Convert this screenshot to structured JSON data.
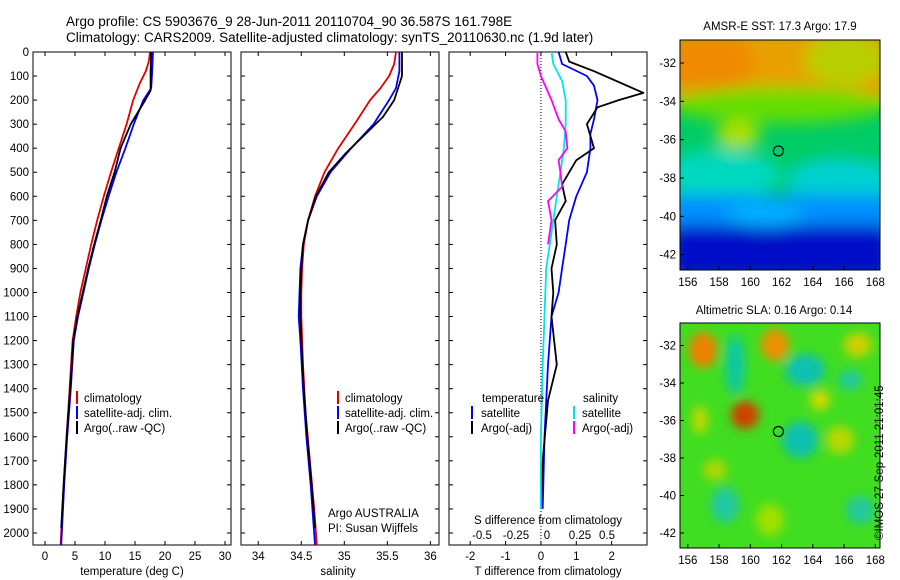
{
  "title_line1": "Argo profile: CS 5903676_9 28-Jun-2011 20110704_90 36.587S 161.798E",
  "title_line2": "Climatology: CARS2009. Satellite-adjusted climatology: synTS_20110630.nc (1.9d later)",
  "side_text": "©IMOS 27-Sep-2011 21:01:45",
  "colors": {
    "climatology": "#e00000",
    "satellite": "#0000ff",
    "argo": "#000000",
    "sat_salinity": "#00e5e5",
    "argo_salinity": "#ff00ff"
  },
  "chart_data": [
    {
      "type": "line",
      "name_id": "temperature",
      "xlabel": "temperature (deg C)",
      "xlim": [
        -2,
        31
      ],
      "xticks": [
        0,
        5,
        10,
        15,
        20,
        25,
        30
      ],
      "ylim": [
        2050,
        0
      ],
      "yticks": [
        0,
        100,
        200,
        300,
        400,
        500,
        600,
        700,
        800,
        900,
        1000,
        1100,
        1200,
        1300,
        1400,
        1500,
        1600,
        1700,
        1800,
        1900,
        2000
      ],
      "legend": [
        "climatology",
        "satellite-adj. clim.",
        "Argo(..raw -QC)"
      ],
      "series": [
        {
          "name": "climatology",
          "color": "#e00000",
          "points": [
            [
              17.5,
              0
            ],
            [
              17.3,
              40
            ],
            [
              16.8,
              80
            ],
            [
              15.8,
              130
            ],
            [
              14.7,
              200
            ],
            [
              13.6,
              300
            ],
            [
              12.3,
              400
            ],
            [
              11,
              500
            ],
            [
              9.8,
              600
            ],
            [
              8.7,
              700
            ],
            [
              7.7,
              800
            ],
            [
              6.8,
              900
            ],
            [
              5.9,
              1000
            ],
            [
              5.2,
              1100
            ],
            [
              4.6,
              1200
            ],
            [
              4.1,
              1400
            ],
            [
              3.6,
              1600
            ],
            [
              3.1,
              1800
            ],
            [
              2.6,
              2050
            ]
          ]
        },
        {
          "name": "satellite-adj. clim.",
          "color": "#0000ff",
          "points": [
            [
              18,
              0
            ],
            [
              17.9,
              60
            ],
            [
              17.8,
              110
            ],
            [
              17.7,
              150
            ],
            [
              16.4,
              200
            ],
            [
              14.8,
              300
            ],
            [
              13.4,
              400
            ],
            [
              11.9,
              500
            ],
            [
              10.6,
              600
            ],
            [
              9.4,
              700
            ],
            [
              8.3,
              800
            ],
            [
              7.3,
              900
            ],
            [
              6.4,
              1000
            ],
            [
              5.5,
              1100
            ],
            [
              4.8,
              1200
            ],
            [
              4.3,
              1400
            ],
            [
              3.7,
              1600
            ],
            [
              3.2,
              1800
            ],
            [
              2.7,
              2050
            ]
          ]
        },
        {
          "name": "Argo(..raw -QC)",
          "color": "#000000",
          "points": [
            [
              17.7,
              0
            ],
            [
              17.6,
              80
            ],
            [
              17.6,
              160
            ],
            [
              16.7,
              200
            ],
            [
              14.3,
              300
            ],
            [
              12.6,
              400
            ],
            [
              11.6,
              500
            ],
            [
              10.3,
              600
            ],
            [
              9.3,
              700
            ],
            [
              8.2,
              800
            ],
            [
              7.2,
              900
            ],
            [
              6.3,
              1000
            ],
            [
              5.4,
              1100
            ],
            [
              4.7,
              1200
            ],
            [
              4.2,
              1400
            ],
            [
              3.6,
              1600
            ],
            [
              3.1,
              1800
            ],
            [
              2.7,
              1980
            ]
          ]
        }
      ]
    },
    {
      "type": "line",
      "name_id": "salinity",
      "xlabel": "salinity",
      "xlim": [
        33.8,
        36.1
      ],
      "xticks": [
        34,
        34.5,
        35,
        35.5,
        36
      ],
      "ylim": [
        2050,
        0
      ],
      "legend": [
        "climatology",
        "satellite-adj. clim.",
        "Argo(..raw -QC)"
      ],
      "annotation": [
        "Argo AUSTRALIA",
        "PI: Susan Wijffels"
      ],
      "series": [
        {
          "name": "climatology",
          "color": "#e00000",
          "points": [
            [
              35.6,
              0
            ],
            [
              35.58,
              50
            ],
            [
              35.52,
              100
            ],
            [
              35.42,
              150
            ],
            [
              35.3,
              200
            ],
            [
              35.12,
              300
            ],
            [
              34.93,
              400
            ],
            [
              34.77,
              500
            ],
            [
              34.66,
              600
            ],
            [
              34.58,
              700
            ],
            [
              34.53,
              800
            ],
            [
              34.51,
              900
            ],
            [
              34.5,
              1000
            ],
            [
              34.5,
              1100
            ],
            [
              34.52,
              1300
            ],
            [
              34.55,
              1500
            ],
            [
              34.6,
              1700
            ],
            [
              34.65,
              1900
            ],
            [
              34.68,
              2050
            ]
          ]
        },
        {
          "name": "satellite-adj. clim.",
          "color": "#0000ff",
          "points": [
            [
              35.64,
              0
            ],
            [
              35.64,
              80
            ],
            [
              35.6,
              150
            ],
            [
              35.52,
              200
            ],
            [
              35.34,
              300
            ],
            [
              35.08,
              400
            ],
            [
              34.84,
              500
            ],
            [
              34.68,
              600
            ],
            [
              34.58,
              700
            ],
            [
              34.52,
              800
            ],
            [
              34.49,
              900
            ],
            [
              34.48,
              1000
            ],
            [
              34.47,
              1100
            ],
            [
              34.49,
              1200
            ],
            [
              34.52,
              1400
            ],
            [
              34.56,
              1600
            ],
            [
              34.61,
              1800
            ],
            [
              34.66,
              2050
            ]
          ]
        },
        {
          "name": "Argo(..raw -QC)",
          "color": "#000000",
          "points": [
            [
              35.67,
              0
            ],
            [
              35.67,
              100
            ],
            [
              35.58,
              200
            ],
            [
              35.45,
              270
            ],
            [
              35.22,
              350
            ],
            [
              35.02,
              420
            ],
            [
              34.82,
              500
            ],
            [
              34.67,
              600
            ],
            [
              34.58,
              700
            ],
            [
              34.52,
              800
            ],
            [
              34.5,
              900
            ],
            [
              34.49,
              1000
            ],
            [
              34.49,
              1100
            ],
            [
              34.5,
              1200
            ],
            [
              34.53,
              1400
            ],
            [
              34.57,
              1600
            ],
            [
              34.62,
              1800
            ],
            [
              34.66,
              1980
            ]
          ]
        }
      ]
    },
    {
      "type": "line",
      "name_id": "difference",
      "xlabel": "T difference from climatology",
      "xlabel_top": "S difference from climatology",
      "xlim": [
        -2.6,
        3
      ],
      "xticks": [
        -2,
        -1,
        0,
        1,
        2
      ],
      "sticks_label": [
        "-0.5",
        "-0.25",
        "0",
        "0.25",
        "0.5"
      ],
      "ylim": [
        2050,
        0
      ],
      "legend_temperature": [
        "temperature",
        "satellite",
        "Argo(-adj)"
      ],
      "legend_salinity": [
        "salinity",
        "satellite",
        "Argo(-adj)"
      ],
      "series": [
        {
          "name": "satellite",
          "color": "#0000ff",
          "points": [
            [
              0.5,
              0
            ],
            [
              0.6,
              50
            ],
            [
              1.3,
              100
            ],
            [
              1.5,
              140
            ],
            [
              1.6,
              200
            ],
            [
              1.5,
              280
            ],
            [
              1.4,
              340
            ],
            [
              1.4,
              400
            ],
            [
              1.3,
              500
            ],
            [
              1.0,
              600
            ],
            [
              0.8,
              700
            ],
            [
              0.7,
              800
            ],
            [
              0.6,
              900
            ],
            [
              0.5,
              1000
            ],
            [
              0.3,
              1100
            ],
            [
              0.2,
              1300
            ],
            [
              0.1,
              1600
            ],
            [
              0.05,
              1900
            ]
          ]
        },
        {
          "name": "Argo(-adj)",
          "color": "#000000",
          "points": [
            [
              0.7,
              0
            ],
            [
              0.8,
              40
            ],
            [
              1.5,
              80
            ],
            [
              2.9,
              170
            ],
            [
              2.2,
              200
            ],
            [
              1.6,
              230
            ],
            [
              1.3,
              300
            ],
            [
              1.5,
              400
            ],
            [
              1.0,
              450
            ],
            [
              0.6,
              550
            ],
            [
              0.7,
              620
            ],
            [
              0.4,
              700
            ],
            [
              0.45,
              800
            ],
            [
              0.3,
              900
            ],
            [
              0.35,
              1000
            ],
            [
              0.3,
              1100
            ],
            [
              0.45,
              1300
            ],
            [
              0.2,
              1450
            ],
            [
              0.05,
              1700
            ],
            [
              0.0,
              1900
            ]
          ]
        },
        {
          "name": "satellite",
          "color": "#00e5e5",
          "points": [
            [
              0.3,
              0
            ],
            [
              0.35,
              50
            ],
            [
              0.6,
              120
            ],
            [
              0.7,
              200
            ],
            [
              0.7,
              300
            ],
            [
              0.65,
              400
            ],
            [
              0.55,
              500
            ],
            [
              0.45,
              600
            ],
            [
              0.35,
              700
            ],
            [
              0.25,
              800
            ],
            [
              0.15,
              900
            ],
            [
              0.1,
              1100
            ],
            [
              0.05,
              1300
            ],
            [
              0.0,
              1600
            ],
            [
              0.0,
              1900
            ]
          ]
        },
        {
          "name": "Argo(-adj)",
          "color": "#ff00ff",
          "points": [
            [
              -0.1,
              0
            ],
            [
              -0.1,
              50
            ],
            [
              0.0,
              100
            ],
            [
              0.3,
              200
            ],
            [
              0.5,
              280
            ],
            [
              0.7,
              330
            ],
            [
              0.75,
              400
            ],
            [
              0.5,
              450
            ],
            [
              0.55,
              500
            ],
            [
              0.6,
              560
            ],
            [
              0.2,
              620
            ],
            [
              0.3,
              700
            ],
            [
              0.2,
              800
            ]
          ]
        }
      ]
    },
    {
      "type": "heatmap",
      "name_id": "sst_map",
      "title": "AMSR-E SST: 17.3 Argo: 17.9",
      "xlim": [
        155.5,
        168.3
      ],
      "ylim": [
        -42.8,
        -30.8
      ],
      "xticks": [
        156,
        158,
        160,
        162,
        164,
        166,
        168
      ],
      "yticks": [
        -32,
        -34,
        -36,
        -38,
        -40,
        -42
      ],
      "marker": [
        161.798,
        -36.587
      ]
    },
    {
      "type": "heatmap",
      "name_id": "sla_map",
      "title": "Altimetric SLA: 0.16 Argo: 0.14",
      "xlim": [
        155.5,
        168.3
      ],
      "ylim": [
        -42.8,
        -30.8
      ],
      "xticks": [
        156,
        158,
        160,
        162,
        164,
        166,
        168
      ],
      "yticks": [
        -32,
        -34,
        -36,
        -38,
        -40,
        -42
      ],
      "marker": [
        161.798,
        -36.587
      ]
    }
  ]
}
